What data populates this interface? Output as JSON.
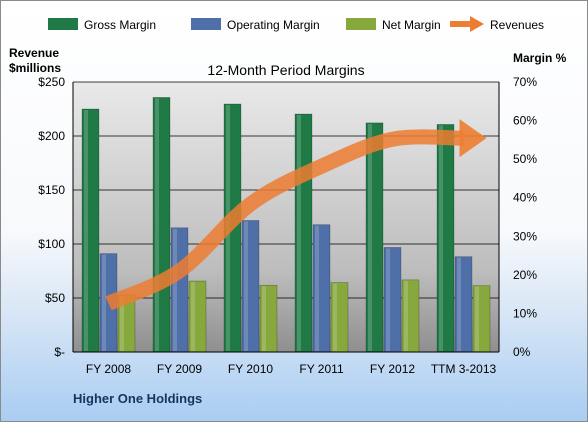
{
  "chart_data": {
    "type": "bar",
    "title": "12-Month Period Margins",
    "categories": [
      "FY 2008",
      "FY 2009",
      "FY 2010",
      "FY 2011",
      "FY 2012",
      "TTM 3-2013"
    ],
    "series": [
      {
        "name": "Gross Margin",
        "axis": "right",
        "color": "#1f7a45",
        "values": [
          63,
          66,
          64.3,
          61.7,
          59.4,
          59
        ]
      },
      {
        "name": "Operating Margin",
        "axis": "right",
        "color": "#4f6fa8",
        "values": [
          25.5,
          32.2,
          34.1,
          33,
          27.1,
          24.7
        ]
      },
      {
        "name": "Net Margin",
        "axis": "right",
        "color": "#86a83c",
        "values": [
          14.8,
          18.4,
          17.3,
          18,
          18.7,
          17.2
        ]
      },
      {
        "name": "Revenues",
        "axis": "left",
        "type": "line",
        "color": "#ed7d31",
        "values": [
          45,
          75,
          137,
          172,
          197,
          198
        ]
      }
    ],
    "y_left": {
      "label_line1": "Revenue",
      "label_line2": "$millions",
      "range": [
        0,
        250
      ],
      "ticks": [
        "$-",
        "$50",
        "$100",
        "$150",
        "$200",
        "$250"
      ]
    },
    "y_right": {
      "label": "Margin %",
      "range": [
        0,
        70
      ],
      "ticks": [
        "0%",
        "10%",
        "20%",
        "30%",
        "40%",
        "50%",
        "60%",
        "70%"
      ]
    },
    "legend": {
      "placement": "top"
    },
    "grid": true,
    "footer": "Higher One Holdings"
  }
}
